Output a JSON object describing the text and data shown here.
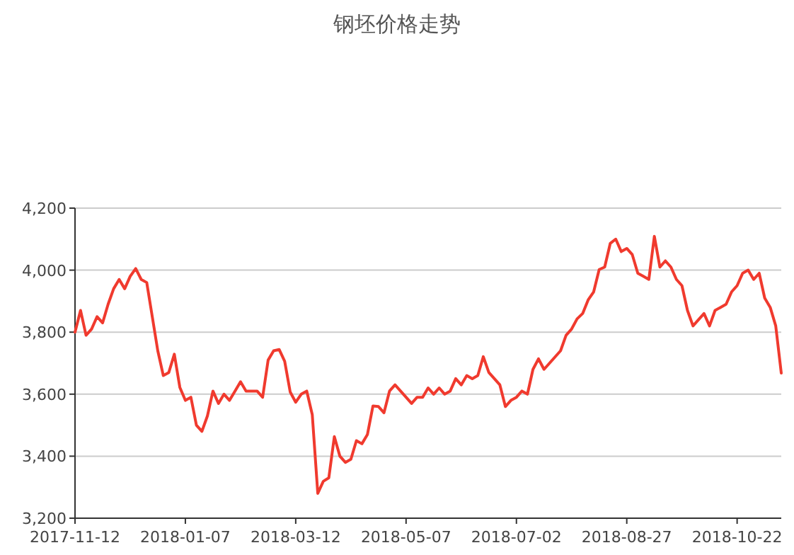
{
  "chart_data": {
    "type": "line",
    "title": "钢坯价格走势",
    "categories": [
      "2017-11-12",
      null,
      null,
      null,
      null,
      null,
      null,
      null,
      null,
      null,
      null,
      null,
      null,
      null,
      null,
      null,
      null,
      null,
      null,
      null,
      "2018-01-07",
      null,
      null,
      null,
      null,
      null,
      null,
      null,
      null,
      null,
      null,
      null,
      null,
      null,
      null,
      null,
      null,
      null,
      null,
      null,
      "2018-03-12",
      null,
      null,
      null,
      null,
      null,
      null,
      null,
      null,
      null,
      null,
      null,
      null,
      null,
      null,
      null,
      null,
      null,
      null,
      null,
      "2018-05-07",
      null,
      null,
      null,
      null,
      null,
      null,
      null,
      null,
      null,
      null,
      null,
      null,
      null,
      null,
      null,
      null,
      null,
      null,
      null,
      "2018-07-02",
      null,
      null,
      null,
      null,
      null,
      null,
      null,
      null,
      null,
      null,
      null,
      null,
      null,
      null,
      null,
      null,
      null,
      null,
      null,
      "2018-08-27",
      null,
      null,
      null,
      null,
      null,
      null,
      null,
      null,
      null,
      null,
      null,
      null,
      null,
      null,
      null,
      null,
      null,
      null,
      null,
      "2018-10-22",
      null,
      null,
      null,
      null,
      null,
      null,
      null,
      null
    ],
    "series": [
      {
        "color": "#f03a2e",
        "values": [
          3800,
          3870,
          3790,
          3810,
          3850,
          3830,
          3890,
          3940,
          3970,
          3940,
          3980,
          4005,
          3970,
          3960,
          3850,
          3740,
          3660,
          3670,
          3729,
          3622,
          3580,
          3590,
          3500,
          3480,
          3530,
          3610,
          3570,
          3600,
          3580,
          3610,
          3640,
          3610,
          3610,
          3610,
          3590,
          3710,
          3740,
          3744,
          3706,
          3607,
          3574,
          3600,
          3610,
          3534,
          3280,
          3319,
          3330,
          3463,
          3400,
          3380,
          3390,
          3450,
          3440,
          3470,
          3562,
          3560,
          3540,
          3610,
          3630,
          3610,
          3590,
          3570,
          3590,
          3590,
          3620,
          3600,
          3620,
          3600,
          3610,
          3650,
          3630,
          3660,
          3650,
          3660,
          3721,
          3670,
          3650,
          3630,
          3560,
          3580,
          3590,
          3610,
          3600,
          3680,
          3714,
          3680,
          3700,
          3720,
          3740,
          3790,
          3810,
          3843,
          3860,
          3904,
          3930,
          4002,
          4010,
          4086,
          4100,
          4060,
          4070,
          4050,
          3990,
          3980,
          3970,
          4109,
          4010,
          4030,
          4010,
          3970,
          3950,
          3870,
          3820,
          3840,
          3860,
          3820,
          3870,
          3880,
          3890,
          3930,
          3950,
          3990,
          4000,
          3970,
          3990,
          3910,
          3880,
          3820,
          3668
        ]
      }
    ],
    "ylim": [
      3200,
      4200
    ],
    "yticks": [
      {
        "value": 3200,
        "label": "3,200"
      },
      {
        "value": 3400,
        "label": "3,400"
      },
      {
        "value": 3600,
        "label": "3,600"
      },
      {
        "value": 3800,
        "label": "3,800"
      },
      {
        "value": 4000,
        "label": "4,000"
      },
      {
        "value": 4200,
        "label": "4,200"
      }
    ],
    "grid": "y",
    "marker": "none",
    "line_style": "solid"
  }
}
